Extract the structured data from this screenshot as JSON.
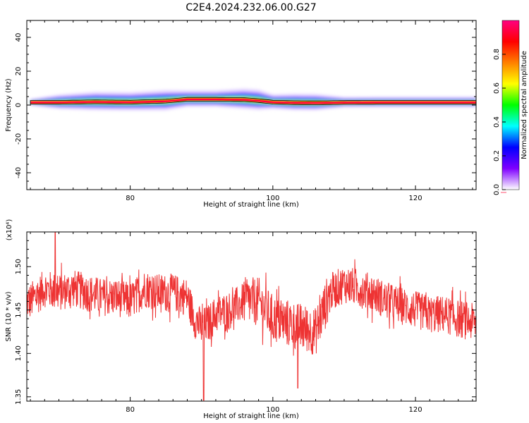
{
  "figure_title": "C2E4.2024.232.06.00.G27",
  "chart_data": [
    {
      "type": "heatmap",
      "panel": "spectrogram",
      "title": "C2E4.2024.232.06.00.G27",
      "xlabel": "Height of straight line (km)",
      "ylabel": "Frequency (Hz)",
      "xlim": [
        65.5,
        128.5
      ],
      "ylim": [
        -50,
        50
      ],
      "x_ticks": [
        "80",
        "100",
        "120"
      ],
      "x_tick_values": [
        80,
        100,
        120
      ],
      "y_ticks": [
        "40",
        "20",
        "0",
        "-20",
        "-40"
      ],
      "y_tick_values": [
        40,
        20,
        0,
        -20,
        -40
      ],
      "colorbar": {
        "label": "Normalized spectral amplitude",
        "range": [
          0.0,
          1.0
        ],
        "ticks": [
          "0.0",
          "0.2",
          "0.4",
          "0.6",
          "0.8"
        ],
        "tick_values": [
          0.0,
          0.2,
          0.4,
          0.6,
          0.8
        ],
        "colors": [
          "#ffffff",
          "#7f00ff",
          "#0000ff",
          "#00ffff",
          "#00ff00",
          "#ffff00",
          "#ff8000",
          "#ff0000",
          "#ff0080"
        ]
      },
      "ridge": {
        "description": "Narrow band of peak amplitude near 1.5 Hz spanning all heights",
        "x": [
          66,
          70,
          75,
          80,
          85,
          88,
          92,
          96,
          98,
          100,
          103,
          106,
          110,
          115,
          120,
          125,
          128.5
        ],
        "center_hz": [
          1.5,
          1.5,
          1.8,
          1.6,
          2.2,
          3.3,
          3.3,
          3.1,
          2.5,
          1.6,
          1.3,
          1.2,
          1.4,
          1.5,
          1.5,
          1.5,
          1.5
        ],
        "halo_width_hz": [
          1.5,
          3.5,
          4.5,
          4.5,
          5,
          4,
          4,
          5,
          5,
          3.5,
          4,
          4,
          2.5,
          2.5,
          2.5,
          2.5,
          2.5
        ]
      }
    },
    {
      "type": "line",
      "panel": "snr",
      "xlabel": "Height of straight line (km)",
      "ylabel": "SNR (10 * v/v)",
      "y_multiplier": "(x10⁴)",
      "xlim": [
        65.5,
        128.5
      ],
      "ylim": [
        1.345,
        1.54
      ],
      "x_ticks": [
        "80",
        "100",
        "120"
      ],
      "x_tick_values": [
        80,
        100,
        120
      ],
      "y_ticks": [
        "1.50",
        "1.45",
        "1.40",
        "1.35"
      ],
      "y_tick_values": [
        1.5,
        1.45,
        1.4,
        1.35
      ],
      "color": "#ee3333",
      "series": [
        {
          "x": [
            66,
            68,
            70,
            72,
            74,
            76,
            78,
            80,
            82,
            84,
            86,
            88,
            89,
            90,
            91,
            92,
            94,
            96,
            98,
            100,
            102,
            104,
            106,
            108,
            110,
            112,
            114,
            116,
            118,
            120,
            122,
            124,
            126,
            128.5
          ],
          "y": [
            1.46,
            1.475,
            1.47,
            1.475,
            1.47,
            1.465,
            1.465,
            1.46,
            1.475,
            1.47,
            1.47,
            1.465,
            1.44,
            1.43,
            1.435,
            1.445,
            1.45,
            1.46,
            1.46,
            1.44,
            1.435,
            1.43,
            1.425,
            1.47,
            1.48,
            1.475,
            1.47,
            1.46,
            1.455,
            1.45,
            1.445,
            1.445,
            1.44,
            1.435
          ]
        }
      ],
      "notable_points": [
        {
          "x": 69.5,
          "y": 1.54
        },
        {
          "x": 90.3,
          "y": 1.345
        },
        {
          "x": 103.5,
          "y": 1.36
        }
      ]
    }
  ]
}
